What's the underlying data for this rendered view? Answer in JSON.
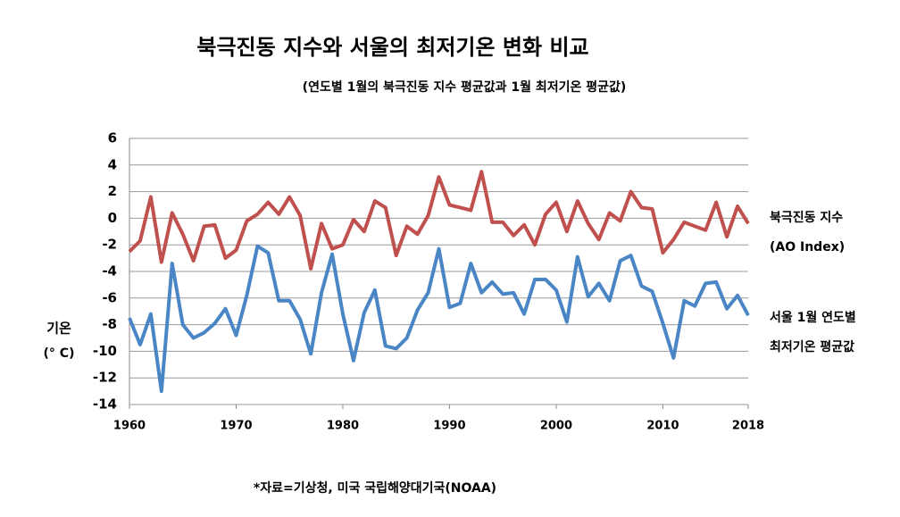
{
  "chart_data": {
    "type": "line",
    "title": "북극진동 지수와 서울의 최저기온 변화 비교",
    "subtitle": "(연도별 1월의 북극진동 지수 평균값과 1월 최저기온 평균값)",
    "ylabel": [
      "기온",
      "(° C)"
    ],
    "source": "*자료=기상청,  미국 국립해양대기국(NOAA)",
    "x": [
      1960,
      1961,
      1962,
      1963,
      1964,
      1965,
      1966,
      1967,
      1968,
      1969,
      1970,
      1971,
      1972,
      1973,
      1974,
      1975,
      1976,
      1977,
      1978,
      1979,
      1980,
      1981,
      1982,
      1983,
      1984,
      1985,
      1986,
      1987,
      1988,
      1989,
      1990,
      1991,
      1992,
      1993,
      1994,
      1995,
      1996,
      1997,
      1998,
      1999,
      2000,
      2001,
      2002,
      2003,
      2004,
      2005,
      2006,
      2007,
      2008,
      2009,
      2010,
      2011,
      2012,
      2013,
      2014,
      2015,
      2016,
      2017,
      2018
    ],
    "series": [
      {
        "name": [
          "북극진동 지수",
          "(AO Index)"
        ],
        "color": "#c0504d",
        "values": [
          -2.5,
          -1.7,
          1.6,
          -3.3,
          0.4,
          -1.2,
          -3.2,
          -0.6,
          -0.5,
          -3.0,
          -2.4,
          -0.2,
          0.3,
          1.2,
          0.3,
          1.6,
          0.2,
          -3.8,
          -0.4,
          -2.3,
          -2.0,
          -0.1,
          -1.0,
          1.3,
          0.8,
          -2.8,
          -0.6,
          -1.2,
          0.2,
          3.1,
          1.0,
          0.8,
          0.6,
          3.5,
          -0.3,
          -0.3,
          -1.3,
          -0.5,
          -2.0,
          0.3,
          1.2,
          -1.0,
          1.3,
          -0.4,
          -1.6,
          0.4,
          -0.2,
          2.0,
          0.8,
          0.7,
          -2.6,
          -1.6,
          -0.3,
          -0.6,
          -0.9,
          1.2,
          -1.4,
          0.9,
          -0.4
        ]
      },
      {
        "name": [
          "서울 1월 연도별",
          "최저기온 평균값"
        ],
        "color": "#4a86c5",
        "values": [
          -7.5,
          -9.5,
          -7.2,
          -13.0,
          -3.4,
          -8.0,
          -9.0,
          -8.6,
          -7.9,
          -6.8,
          -8.8,
          -5.8,
          -2.1,
          -2.6,
          -6.2,
          -6.2,
          -7.6,
          -10.2,
          -5.6,
          -2.7,
          -7.2,
          -10.7,
          -7.1,
          -5.4,
          -9.6,
          -9.8,
          -9.0,
          -6.9,
          -5.6,
          -2.3,
          -6.7,
          -6.4,
          -3.4,
          -5.6,
          -4.8,
          -5.7,
          -5.6,
          -7.2,
          -4.6,
          -4.6,
          -5.4,
          -7.8,
          -2.9,
          -5.9,
          -4.9,
          -6.2,
          -3.2,
          -2.8,
          -5.1,
          -5.5,
          -7.9,
          -10.5,
          -6.2,
          -6.6,
          -4.9,
          -4.8,
          -6.8,
          -5.8,
          -7.3
        ]
      }
    ],
    "xlim": [
      1960,
      2018
    ],
    "xticks": [
      1960,
      1970,
      1980,
      1990,
      2000,
      2010,
      2018
    ],
    "ylim": [
      -14,
      6
    ],
    "yticks": [
      -14,
      -12,
      -10,
      -8,
      -6,
      -4,
      -2,
      0,
      2,
      4,
      6
    ],
    "grid": true
  }
}
